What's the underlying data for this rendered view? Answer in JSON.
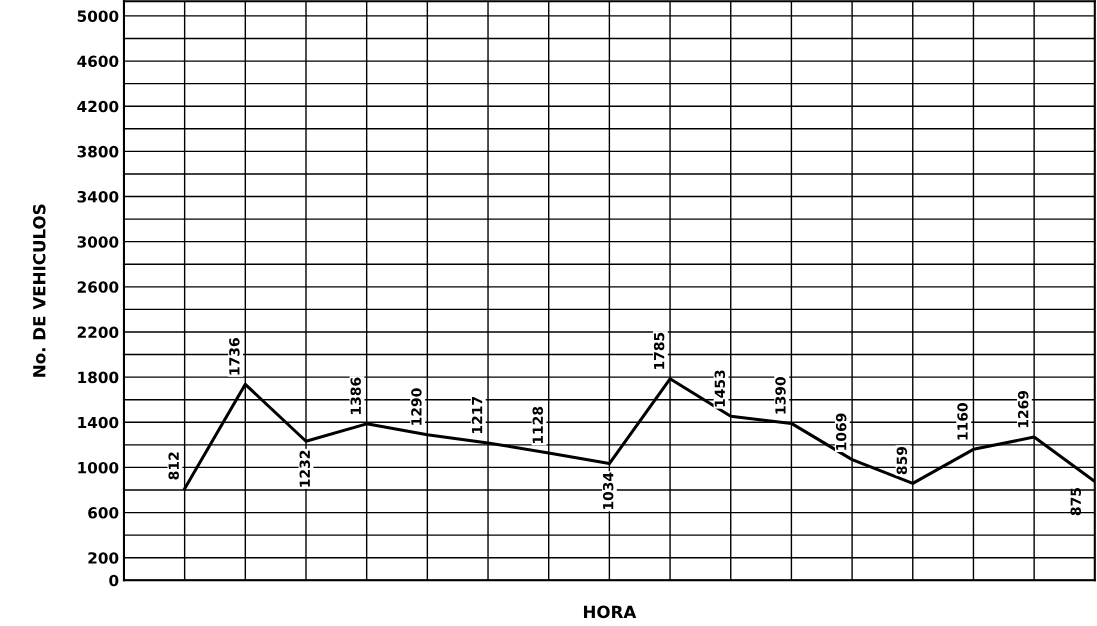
{
  "chart_data": {
    "type": "line",
    "xlabel": "HORA",
    "ylabel": "No. DE VEHICULOS",
    "categories": [
      null,
      null,
      null,
      null,
      null,
      null,
      null,
      null,
      null,
      null,
      null,
      null,
      null,
      null,
      null,
      null
    ],
    "series": [
      {
        "color": "#000000",
        "values": [
          812,
          1736,
          1232,
          1386,
          1290,
          1217,
          1128,
          1034,
          1785,
          1453,
          1390,
          1069,
          859,
          1160,
          1269,
          875
        ]
      }
    ],
    "data_labels": true,
    "marker": "none",
    "line_style": "solid",
    "grid": true,
    "tick_labels": "y",
    "ylim": [
      0,
      5130
    ],
    "yticks": [
      0,
      200,
      {
        "value": 400,
        "label": null
      },
      600,
      {
        "value": 800,
        "label": null
      },
      1000,
      {
        "value": 1200,
        "label": null
      },
      1400,
      {
        "value": 1600,
        "label": null
      },
      1800,
      {
        "value": 2000,
        "label": null
      },
      2200,
      {
        "value": 2400,
        "label": null
      },
      2600,
      {
        "value": 2800,
        "label": null
      },
      3000,
      {
        "value": 3200,
        "label": null
      },
      3400,
      {
        "value": 3600,
        "label": null
      },
      3800,
      {
        "value": 4000,
        "label": null
      },
      4200,
      {
        "value": 4400,
        "label": null
      },
      4600,
      {
        "value": 4800,
        "label": null
      },
      5000
    ]
  }
}
